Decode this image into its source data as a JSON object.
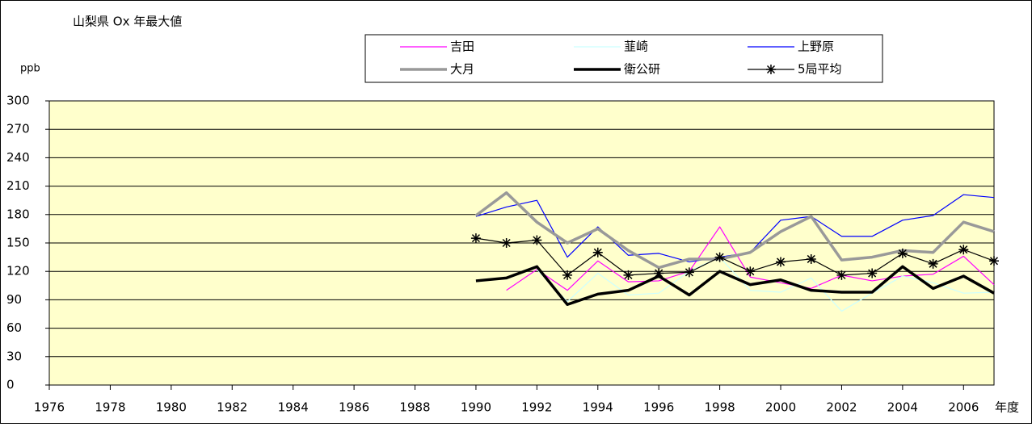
{
  "chart_data": {
    "type": "line",
    "title": "山梨県 Ox 年最大値",
    "y_label": "ppb",
    "x_label": "年度",
    "x": [
      1990,
      1991,
      1992,
      1993,
      1994,
      1995,
      1996,
      1997,
      1998,
      1999,
      2000,
      2001,
      2002,
      2003,
      2004,
      2005,
      2006,
      2007
    ],
    "series": [
      {
        "name": "吉田",
        "color": "#ff00ff",
        "width": 1.2,
        "values": [
          null,
          100,
          122,
          100,
          131,
          109,
          110,
          120,
          167,
          114,
          108,
          102,
          116,
          110,
          115,
          117,
          136,
          106
        ]
      },
      {
        "name": "韮崎",
        "color": "#ccffff",
        "width": 1.2,
        "values": [
          null,
          null,
          122,
          88,
          118,
          95,
          97,
          120,
          135,
          100,
          98,
          113,
          78,
          97,
          115,
          108,
          97,
          98
        ]
      },
      {
        "name": "上野原",
        "color": "#0000ff",
        "width": 1.2,
        "values": [
          178,
          188,
          195,
          135,
          167,
          137,
          139,
          130,
          135,
          140,
          174,
          178,
          157,
          157,
          174,
          179,
          201,
          198
        ]
      },
      {
        "name": "大月",
        "color": "#999999",
        "width": 3.5,
        "values": [
          179,
          203,
          172,
          150,
          165,
          142,
          124,
          133,
          133,
          140,
          162,
          178,
          132,
          135,
          142,
          140,
          172,
          162
        ]
      },
      {
        "name": "衛公研",
        "color": "#000000",
        "width": 3.5,
        "values": [
          110,
          113,
          125,
          85,
          96,
          100,
          115,
          95,
          120,
          106,
          111,
          100,
          98,
          98,
          125,
          102,
          115,
          97
        ]
      },
      {
        "name": "5局平均",
        "color": "#000000",
        "width": 1.2,
        "marker": "asterisk",
        "values": [
          155,
          150,
          153,
          116,
          140,
          116,
          118,
          119,
          135,
          120,
          130,
          133,
          116,
          118,
          139,
          128,
          143,
          131
        ]
      }
    ],
    "xlim": [
      1976,
      2007
    ],
    "xticks": [
      1976,
      1978,
      1980,
      1982,
      1984,
      1986,
      1988,
      1990,
      1992,
      1994,
      1996,
      1998,
      2000,
      2002,
      2004,
      2006
    ],
    "ylim": [
      0,
      300
    ],
    "yticks": [
      0,
      30,
      60,
      90,
      120,
      150,
      180,
      210,
      240,
      270,
      300
    ],
    "grid": true,
    "background": "#ffffcc"
  }
}
